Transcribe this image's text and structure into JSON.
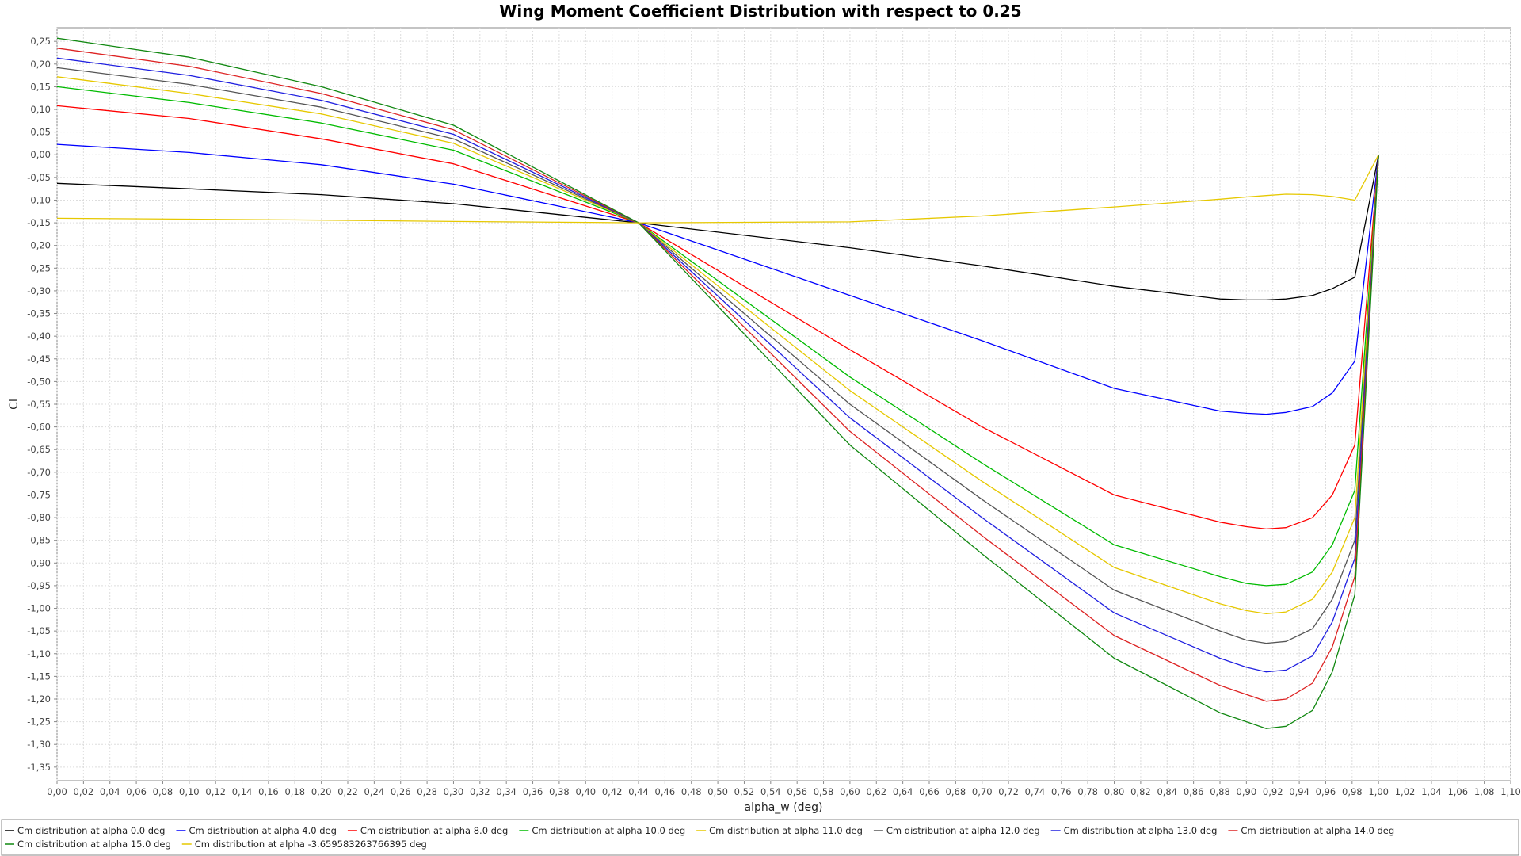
{
  "chart_data": {
    "type": "line",
    "title": "Wing Moment Coefficient Distribution with respect to 0.25",
    "xlabel": "alpha_w (deg)",
    "ylabel": "Cl",
    "xlim": [
      0.0,
      1.1
    ],
    "ylim": [
      -1.38,
      0.28
    ],
    "x_ticks": [
      "0,00",
      "0,02",
      "0,04",
      "0,06",
      "0,08",
      "0,10",
      "0,12",
      "0,14",
      "0,16",
      "0,18",
      "0,20",
      "0,22",
      "0,24",
      "0,26",
      "0,28",
      "0,30",
      "0,32",
      "0,34",
      "0,36",
      "0,38",
      "0,40",
      "0,42",
      "0,44",
      "0,46",
      "0,48",
      "0,50",
      "0,52",
      "0,54",
      "0,56",
      "0,58",
      "0,60",
      "0,62",
      "0,64",
      "0,66",
      "0,68",
      "0,70",
      "0,72",
      "0,74",
      "0,76",
      "0,78",
      "0,80",
      "0,82",
      "0,84",
      "0,86",
      "0,88",
      "0,90",
      "0,92",
      "0,94",
      "0,96",
      "0,98",
      "1,00",
      "1,02",
      "1,04",
      "1,06",
      "1,08",
      "1,10"
    ],
    "y_ticks": [
      "0,25",
      "0,20",
      "0,15",
      "0,10",
      "0,05",
      "0,00",
      "-0,05",
      "-0,10",
      "-0,15",
      "-0,20",
      "-0,25",
      "-0,30",
      "-0,35",
      "-0,40",
      "-0,45",
      "-0,50",
      "-0,55",
      "-0,60",
      "-0,65",
      "-0,70",
      "-0,75",
      "-0,80",
      "-0,85",
      "-0,90",
      "-0,95",
      "-1,00",
      "-1,05",
      "-1,10",
      "-1,15",
      "-1,20",
      "-1,25",
      "-1,30",
      "-1,35"
    ],
    "grid": true,
    "legend_position": "bottom",
    "x": [
      0.0,
      0.1,
      0.2,
      0.3,
      0.44,
      0.6,
      0.7,
      0.8,
      0.88,
      0.9,
      0.915,
      0.93,
      0.95,
      0.965,
      0.982,
      1.0
    ],
    "series": [
      {
        "name": "Cm distribution at alpha 0.0 deg",
        "color": "#000000",
        "values": [
          -0.063,
          -0.075,
          -0.088,
          -0.108,
          -0.15,
          -0.205,
          -0.245,
          -0.29,
          -0.318,
          -0.32,
          -0.32,
          -0.318,
          -0.31,
          -0.295,
          -0.27,
          0.0
        ]
      },
      {
        "name": "Cm distribution at alpha 4.0 deg",
        "color": "#0000ff",
        "values": [
          0.023,
          0.005,
          -0.022,
          -0.065,
          -0.15,
          -0.31,
          -0.41,
          -0.515,
          -0.565,
          -0.57,
          -0.572,
          -0.568,
          -0.555,
          -0.525,
          -0.455,
          0.0
        ]
      },
      {
        "name": "Cm distribution at alpha 8.0 deg",
        "color": "#ff0000",
        "values": [
          0.108,
          0.08,
          0.035,
          -0.02,
          -0.15,
          -0.43,
          -0.6,
          -0.75,
          -0.81,
          -0.82,
          -0.825,
          -0.822,
          -0.8,
          -0.75,
          -0.64,
          0.0
        ]
      },
      {
        "name": "Cm distribution at alpha 10.0 deg",
        "color": "#00bb00",
        "values": [
          0.15,
          0.115,
          0.07,
          0.01,
          -0.15,
          -0.49,
          -0.68,
          -0.86,
          -0.93,
          -0.945,
          -0.95,
          -0.947,
          -0.92,
          -0.86,
          -0.74,
          0.0
        ]
      },
      {
        "name": "Cm distribution at alpha 11.0 deg",
        "color": "#e6c800",
        "values": [
          0.172,
          0.135,
          0.09,
          0.025,
          -0.15,
          -0.52,
          -0.72,
          -0.91,
          -0.99,
          -1.005,
          -1.012,
          -1.008,
          -0.98,
          -0.92,
          -0.8,
          0.0
        ]
      },
      {
        "name": "Cm distribution at alpha 12.0 deg",
        "color": "#555555",
        "values": [
          0.192,
          0.155,
          0.105,
          0.035,
          -0.15,
          -0.55,
          -0.76,
          -0.96,
          -1.05,
          -1.07,
          -1.077,
          -1.073,
          -1.045,
          -0.98,
          -0.85,
          0.0
        ]
      },
      {
        "name": "Cm distribution at alpha 13.0 deg",
        "color": "#2020e0",
        "values": [
          0.213,
          0.175,
          0.12,
          0.045,
          -0.15,
          -0.58,
          -0.8,
          -1.01,
          -1.11,
          -1.13,
          -1.14,
          -1.136,
          -1.105,
          -1.03,
          -0.89,
          0.0
        ]
      },
      {
        "name": "Cm distribution at alpha 14.0 deg",
        "color": "#dd2222",
        "values": [
          0.235,
          0.195,
          0.135,
          0.055,
          -0.15,
          -0.61,
          -0.84,
          -1.06,
          -1.17,
          -1.19,
          -1.205,
          -1.2,
          -1.165,
          -1.085,
          -0.93,
          0.0
        ]
      },
      {
        "name": "Cm distribution at alpha 15.0 deg",
        "color": "#118811",
        "values": [
          0.257,
          0.215,
          0.15,
          0.065,
          -0.15,
          -0.64,
          -0.88,
          -1.11,
          -1.23,
          -1.25,
          -1.265,
          -1.26,
          -1.225,
          -1.14,
          -0.97,
          0.0
        ]
      },
      {
        "name": "Cm distribution at alpha -3.659583263766395 deg",
        "color": "#e6c800",
        "values": [
          -0.14,
          -0.142,
          -0.144,
          -0.147,
          -0.15,
          -0.148,
          -0.135,
          -0.115,
          -0.098,
          -0.093,
          -0.09,
          -0.087,
          -0.088,
          -0.092,
          -0.1,
          0.0
        ]
      }
    ]
  }
}
